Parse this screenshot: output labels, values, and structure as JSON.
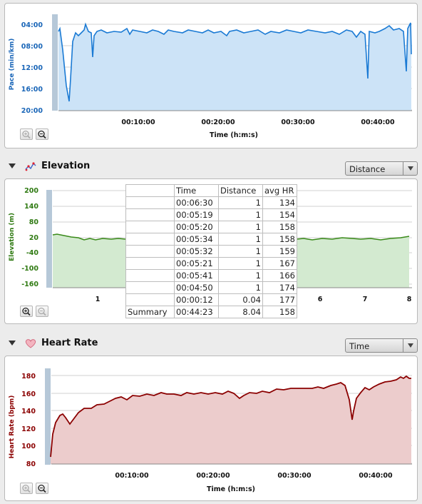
{
  "pace": {
    "ylabel": "Pace (min/km)",
    "yticks": [
      "04:00",
      "08:00",
      "12:00",
      "16:00",
      "20:00"
    ],
    "xticks": [
      "00:10:00",
      "00:20:00",
      "00:30:00",
      "00:40:00"
    ],
    "xlabel": "Time (h:m:s)",
    "color": "#1a7ad4",
    "fill": "#cce3f7"
  },
  "elevation": {
    "title": "Elevation",
    "dropdown_value": "Distance",
    "ylabel": "Elevation (m)",
    "yticks": [
      "200",
      "140",
      "80",
      "20",
      "-40",
      "-100",
      "-160"
    ],
    "xticks_left": [
      "1"
    ],
    "xticks_right": [
      "6",
      "7",
      "8"
    ],
    "color": "#3a8a1a",
    "fill": "#d3ead0"
  },
  "laps": {
    "headers": [
      "",
      "Time",
      "Distance",
      "avg HR"
    ],
    "rows": [
      {
        "name": "",
        "time": "00:06:30",
        "distance": "1",
        "hr": "134"
      },
      {
        "name": "",
        "time": "00:05:19",
        "distance": "1",
        "hr": "154"
      },
      {
        "name": "",
        "time": "00:05:20",
        "distance": "1",
        "hr": "158"
      },
      {
        "name": "",
        "time": "00:05:34",
        "distance": "1",
        "hr": "158"
      },
      {
        "name": "",
        "time": "00:05:32",
        "distance": "1",
        "hr": "159"
      },
      {
        "name": "",
        "time": "00:05:21",
        "distance": "1",
        "hr": "167"
      },
      {
        "name": "",
        "time": "00:05:41",
        "distance": "1",
        "hr": "166"
      },
      {
        "name": "",
        "time": "00:04:50",
        "distance": "1",
        "hr": "174"
      },
      {
        "name": "",
        "time": "00:00:12",
        "distance": "0.04",
        "hr": "177"
      }
    ],
    "summary": {
      "name": "Summary",
      "time": "00:44:23",
      "distance": "8.04",
      "hr": "158"
    }
  },
  "heartrate": {
    "title": "Heart Rate",
    "dropdown_value": "Time",
    "ylabel": "Heart Rate (bpm)",
    "yticks": [
      "180",
      "160",
      "140",
      "120",
      "100",
      "80"
    ],
    "xticks": [
      "00:10:00",
      "00:20:00",
      "00:30:00",
      "00:40:00"
    ],
    "xlabel": "Time (h:m:s)",
    "color": "#8b0000",
    "fill": "#eccccc"
  },
  "icons": {
    "zoom_in": "zoom-in-icon",
    "zoom_out": "zoom-out-icon",
    "collapse": "collapse-triangle-icon",
    "elevation_icon": "elevation-chart-icon",
    "heart_icon": "heart-icon"
  }
}
